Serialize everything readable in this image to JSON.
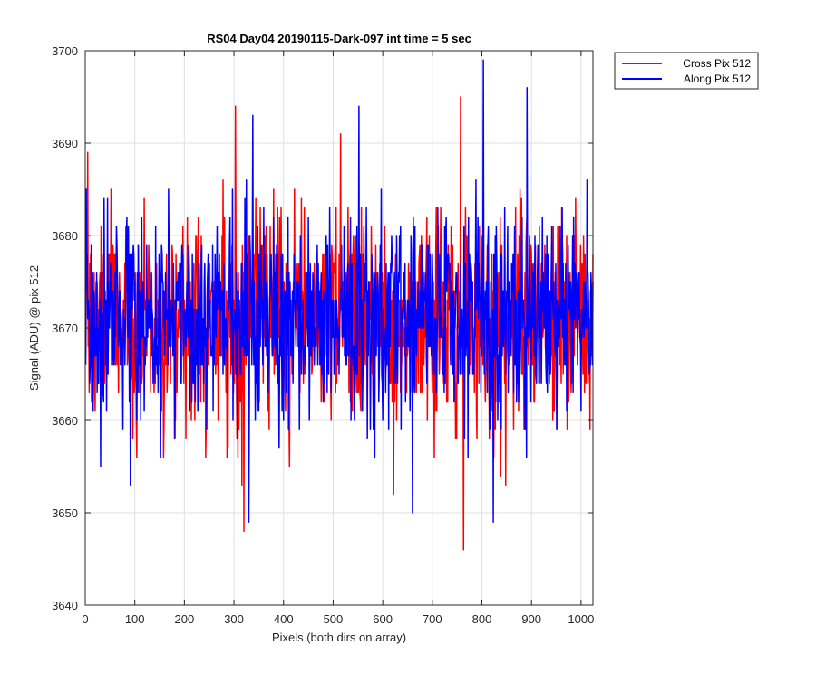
{
  "chart_data": {
    "type": "line",
    "title": "RS04 Day04 20190115-Dark-097 int time = 5 sec",
    "xlabel": "Pixels (both dirs on array)",
    "ylabel": "Signal (ADU) @ pix 512",
    "xlim": [
      0,
      1024
    ],
    "ylim": [
      3640,
      3700
    ],
    "x_ticks": [
      0,
      100,
      200,
      300,
      400,
      500,
      600,
      700,
      800,
      900,
      1000
    ],
    "y_ticks": [
      3640,
      3650,
      3660,
      3670,
      3680,
      3690,
      3700
    ],
    "grid": true,
    "legend_position": "outside-top-right",
    "series": [
      {
        "name": "Cross Pix 512",
        "color": "#ff0000",
        "x_start": 1,
        "x_step": 1,
        "mean": 3671,
        "std_dev": 5.6,
        "peak_points": [
          [
            5,
            3689
          ],
          [
            303,
            3694
          ],
          [
            320,
            3648
          ],
          [
            515,
            3691
          ],
          [
            622,
            3652
          ],
          [
            757,
            3695
          ],
          [
            763,
            3646
          ],
          [
            838,
            3654
          ],
          [
            848,
            3653
          ]
        ]
      },
      {
        "name": "Along Pix 512",
        "color": "#0000ff",
        "x_start": 1,
        "x_step": 1,
        "mean": 3671,
        "std_dev": 5.6,
        "peak_points": [
          [
            338,
            3693
          ],
          [
            330,
            3649
          ],
          [
            552,
            3694
          ],
          [
            660,
            3650
          ],
          [
            803,
            3699
          ],
          [
            823,
            3649
          ],
          [
            891,
            3696
          ]
        ]
      }
    ]
  }
}
